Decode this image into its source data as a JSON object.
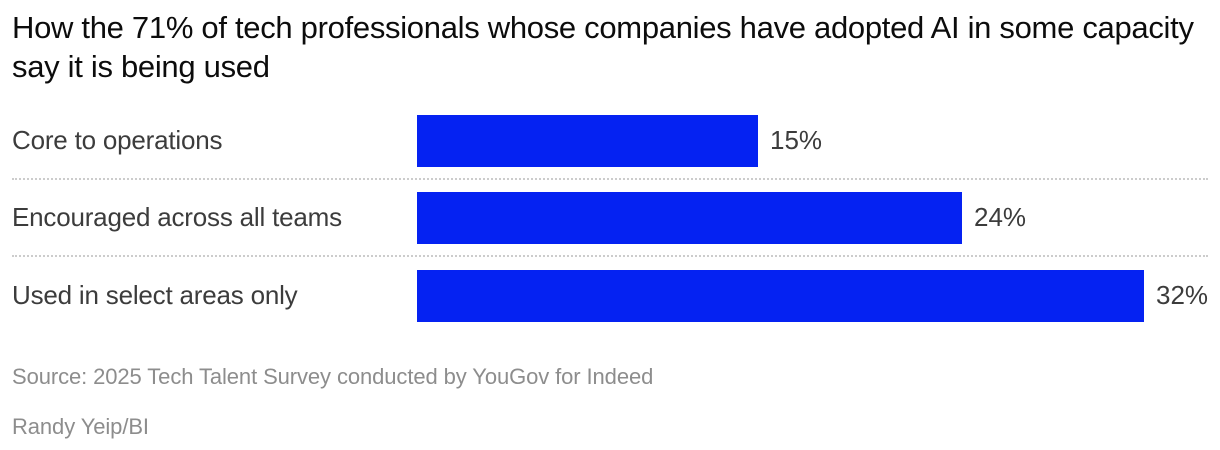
{
  "title": "How the 71% of tech professionals whose companies have adopted AI in some capacity say it is being used",
  "source": "Source: 2025 Tech Talent Survey conducted by YouGov for Indeed",
  "credit": "Randy Yeip/BI",
  "colors": {
    "bar": "#0522f2",
    "title": "#0c0c0c",
    "label": "#3c3c3c",
    "muted": "#8d8d8d",
    "separator": "#cccccc"
  },
  "chart_data": {
    "type": "bar",
    "orientation": "horizontal",
    "title": "How the 71% of tech professionals whose companies have adopted AI in some capacity say it is being used",
    "categories": [
      "Core to operations",
      "Encouraged across all teams",
      "Used in select areas only"
    ],
    "values": [
      15,
      24,
      32
    ],
    "value_labels": [
      "15%",
      "24%",
      "32%"
    ],
    "unit": "%",
    "xlim": [
      0,
      32
    ],
    "xlabel": "",
    "ylabel": "",
    "grid": false,
    "legend": false,
    "annotations": [
      "Source: 2025 Tech Talent Survey conducted by YouGov for Indeed",
      "Randy Yeip/BI"
    ]
  }
}
